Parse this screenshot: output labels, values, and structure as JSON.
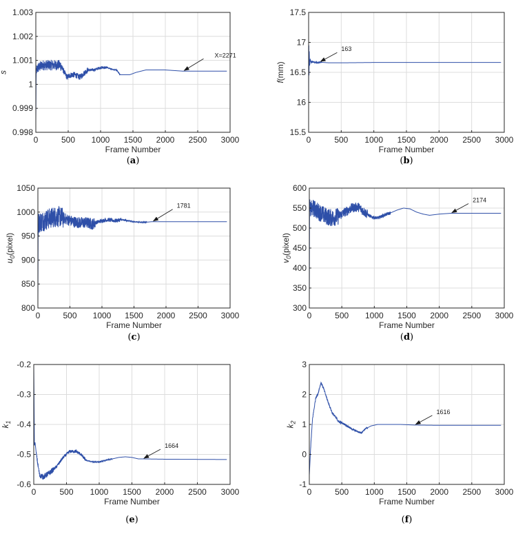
{
  "chart_data": [
    {
      "panel": "a",
      "type": "line",
      "ylabel": "s",
      "xlabel": "Frame Number",
      "xlim": [
        0,
        3000
      ],
      "ylim": [
        0.998,
        1.003
      ],
      "xticks": [
        0,
        500,
        1000,
        1500,
        2000,
        2500,
        3000
      ],
      "yticks": [
        0.998,
        0.999,
        1,
        1.001,
        1.002,
        1.003
      ],
      "ytick_labels": [
        "0.998",
        "0.999",
        "1",
        "1.001",
        "1.002",
        "1.003"
      ],
      "series_points": [
        [
          0,
          0.9984
        ],
        [
          4,
          1.0001
        ],
        [
          10,
          1.0006
        ],
        [
          40,
          1.0007
        ],
        [
          100,
          1.0008
        ],
        [
          200,
          1.0008
        ],
        [
          300,
          1.0008
        ],
        [
          380,
          1.0008
        ],
        [
          420,
          1.0006
        ],
        [
          480,
          1.0003
        ],
        [
          550,
          1.0004
        ],
        [
          600,
          1.0004
        ],
        [
          680,
          1.0003
        ],
        [
          760,
          1.0005
        ],
        [
          800,
          1.0006
        ],
        [
          900,
          1.0006
        ],
        [
          1000,
          1.0007
        ],
        [
          1100,
          1.0007
        ],
        [
          1200,
          1.0006
        ],
        [
          1250,
          1.0006
        ],
        [
          1300,
          1.0004
        ],
        [
          1350,
          1.0004
        ],
        [
          1450,
          1.0004
        ],
        [
          1550,
          1.0005
        ],
        [
          1700,
          1.0006
        ],
        [
          1850,
          1.0006
        ],
        [
          2000,
          1.0006
        ],
        [
          2271,
          1.00055
        ],
        [
          2600,
          1.00055
        ],
        [
          2950,
          1.00055
        ]
      ],
      "noise": [
        [
          0,
          400,
          0.00022
        ],
        [
          400,
          800,
          0.00012
        ],
        [
          800,
          1100,
          6e-05
        ],
        [
          1100,
          1300,
          2e-05
        ]
      ],
      "final": 1.00055,
      "annotation": {
        "text": "X=2271",
        "x": 2271,
        "y": 1.00055
      }
    },
    {
      "panel": "b",
      "type": "line",
      "ylabel": "f(mm)",
      "xlabel": "Frame  Number",
      "xlim": [
        0,
        3000
      ],
      "ylim": [
        15.5,
        17.5
      ],
      "xticks": [
        0,
        500,
        1000,
        1500,
        2000,
        2500,
        3000
      ],
      "yticks": [
        15.5,
        16,
        16.5,
        17,
        17.5
      ],
      "ytick_labels": [
        "15.5",
        "16",
        "16.5",
        "17",
        "17.5"
      ],
      "series_points": [
        [
          0,
          15.9
        ],
        [
          3,
          17.2
        ],
        [
          6,
          16.45
        ],
        [
          10,
          16.85
        ],
        [
          15,
          16.6
        ],
        [
          25,
          16.72
        ],
        [
          40,
          16.66
        ],
        [
          60,
          16.68
        ],
        [
          100,
          16.66
        ],
        [
          163,
          16.67
        ],
        [
          300,
          16.66
        ],
        [
          600,
          16.66
        ],
        [
          1000,
          16.665
        ],
        [
          2000,
          16.665
        ],
        [
          2950,
          16.665
        ]
      ],
      "noise": [
        [
          25,
          200,
          0.015
        ]
      ],
      "final": 16.665,
      "annotation": {
        "text": "163",
        "x": 163,
        "y": 16.67
      }
    },
    {
      "panel": "c",
      "type": "line",
      "ylabel": "u0(pixel)",
      "ylabel_main": "u",
      "ylabel_sub": "0",
      "ylabel_rest": "(pixel)",
      "xlabel": "Frame  Number",
      "xlim": [
        0,
        3000
      ],
      "ylim": [
        800,
        1050
      ],
      "xticks": [
        0,
        500,
        1000,
        1500,
        2000,
        2500,
        3000
      ],
      "yticks": [
        800,
        850,
        900,
        950,
        1000,
        1050
      ],
      "ytick_labels": [
        "800",
        "850",
        "900",
        "950",
        "1000",
        "1050"
      ],
      "series_points": [
        [
          0,
          810
        ],
        [
          4,
          960
        ],
        [
          10,
          978
        ],
        [
          50,
          980
        ],
        [
          150,
          985
        ],
        [
          250,
          990
        ],
        [
          350,
          990
        ],
        [
          450,
          985
        ],
        [
          550,
          980
        ],
        [
          650,
          978
        ],
        [
          750,
          978
        ],
        [
          850,
          975
        ],
        [
          900,
          978
        ],
        [
          1000,
          982
        ],
        [
          1100,
          984
        ],
        [
          1200,
          982
        ],
        [
          1300,
          984
        ],
        [
          1400,
          982
        ],
        [
          1500,
          980
        ],
        [
          1600,
          979
        ],
        [
          1700,
          979
        ],
        [
          1781,
          980
        ],
        [
          2200,
          980
        ],
        [
          2950,
          980
        ]
      ],
      "noise": [
        [
          4,
          400,
          22
        ],
        [
          400,
          900,
          12
        ],
        [
          900,
          1300,
          4
        ],
        [
          1300,
          1700,
          1.5
        ]
      ],
      "final": 980,
      "annotation": {
        "text": "1781",
        "x": 1781,
        "y": 980
      }
    },
    {
      "panel": "d",
      "type": "line",
      "ylabel": "v0(pixel)",
      "ylabel_main": "v",
      "ylabel_sub": "0",
      "ylabel_rest": "(pixel)",
      "xlabel": "Frame  Number",
      "xlim": [
        0,
        3000
      ],
      "ylim": [
        300,
        600
      ],
      "xticks": [
        0,
        500,
        1000,
        1500,
        2000,
        2500,
        3000
      ],
      "yticks": [
        300,
        350,
        400,
        450,
        500,
        550,
        600
      ],
      "ytick_labels": [
        "300",
        "350",
        "400",
        "450",
        "500",
        "550",
        "600"
      ],
      "series_points": [
        [
          0,
          300
        ],
        [
          4,
          560
        ],
        [
          10,
          545
        ],
        [
          60,
          550
        ],
        [
          150,
          540
        ],
        [
          250,
          530
        ],
        [
          350,
          525
        ],
        [
          450,
          530
        ],
        [
          550,
          540
        ],
        [
          650,
          550
        ],
        [
          750,
          553
        ],
        [
          850,
          540
        ],
        [
          950,
          528
        ],
        [
          1050,
          525
        ],
        [
          1150,
          532
        ],
        [
          1250,
          538
        ],
        [
          1350,
          545
        ],
        [
          1450,
          550
        ],
        [
          1550,
          548
        ],
        [
          1650,
          540
        ],
        [
          1750,
          535
        ],
        [
          1850,
          532
        ],
        [
          2000,
          535
        ],
        [
          2174,
          537
        ],
        [
          2500,
          537
        ],
        [
          2950,
          537
        ]
      ],
      "noise": [
        [
          4,
          450,
          22
        ],
        [
          450,
          900,
          12
        ],
        [
          900,
          1250,
          4
        ]
      ],
      "final": 537,
      "annotation": {
        "text": "2174",
        "x": 2174,
        "y": 537
      }
    },
    {
      "panel": "e",
      "type": "line",
      "ylabel": "k1",
      "ylabel_main": "k",
      "ylabel_sub": "1",
      "ylabel_rest": "",
      "xlabel": "Frame  Number",
      "xlim": [
        0,
        3000
      ],
      "ylim": [
        -0.6,
        -0.2
      ],
      "xticks": [
        0,
        500,
        1000,
        1500,
        2000,
        2500,
        3000
      ],
      "yticks": [
        -0.6,
        -0.5,
        -0.4,
        -0.3,
        -0.2
      ],
      "ytick_labels": [
        "-0.6",
        "-0.5",
        "-0.4",
        "-0.3",
        "-0.2"
      ],
      "series_points": [
        [
          0,
          -0.2
        ],
        [
          4,
          -0.3
        ],
        [
          10,
          -0.47
        ],
        [
          20,
          -0.46
        ],
        [
          40,
          -0.5
        ],
        [
          60,
          -0.53
        ],
        [
          90,
          -0.57
        ],
        [
          150,
          -0.575
        ],
        [
          250,
          -0.56
        ],
        [
          350,
          -0.54
        ],
        [
          450,
          -0.51
        ],
        [
          550,
          -0.49
        ],
        [
          650,
          -0.49
        ],
        [
          720,
          -0.5
        ],
        [
          800,
          -0.52
        ],
        [
          900,
          -0.525
        ],
        [
          1000,
          -0.525
        ],
        [
          1100,
          -0.52
        ],
        [
          1200,
          -0.515
        ],
        [
          1300,
          -0.51
        ],
        [
          1400,
          -0.508
        ],
        [
          1500,
          -0.51
        ],
        [
          1600,
          -0.515
        ],
        [
          1664,
          -0.515
        ],
        [
          2000,
          -0.516
        ],
        [
          2950,
          -0.517
        ]
      ],
      "noise": [
        [
          40,
          300,
          0.009
        ],
        [
          300,
          800,
          0.005
        ],
        [
          800,
          1200,
          0.0015
        ]
      ],
      "final": -0.517,
      "annotation": {
        "text": "1664",
        "x": 1664,
        "y": -0.515
      }
    },
    {
      "panel": "f",
      "type": "line",
      "ylabel": "k2",
      "ylabel_main": "k",
      "ylabel_sub": "2",
      "ylabel_rest": "",
      "xlabel": "Frame  Number",
      "xlim": [
        0,
        3000
      ],
      "ylim": [
        -1,
        3
      ],
      "xticks": [
        0,
        500,
        1000,
        1500,
        2000,
        2500,
        3000
      ],
      "yticks": [
        -1,
        0,
        1,
        2,
        3
      ],
      "ytick_labels": [
        "-1",
        "0",
        "1",
        "2",
        "3"
      ],
      "series_points": [
        [
          0,
          -0.7
        ],
        [
          20,
          0.2
        ],
        [
          50,
          1.2
        ],
        [
          100,
          1.9
        ],
        [
          130,
          2.0
        ],
        [
          180,
          2.4
        ],
        [
          220,
          2.2
        ],
        [
          280,
          1.8
        ],
        [
          350,
          1.4
        ],
        [
          450,
          1.1
        ],
        [
          550,
          1.0
        ],
        [
          650,
          0.85
        ],
        [
          700,
          0.8
        ],
        [
          760,
          0.75
        ],
        [
          800,
          0.72
        ],
        [
          860,
          0.85
        ],
        [
          950,
          0.95
        ],
        [
          1050,
          1.0
        ],
        [
          1200,
          1.0
        ],
        [
          1400,
          1.0
        ],
        [
          1616,
          0.98
        ],
        [
          2000,
          0.97
        ],
        [
          2950,
          0.97
        ]
      ],
      "noise": [
        [
          20,
          500,
          0.04
        ],
        [
          500,
          900,
          0.03
        ]
      ],
      "final": 0.97,
      "annotation": {
        "text": "1616",
        "x": 1616,
        "y": 0.98
      }
    }
  ],
  "captions": [
    {
      "open": "(",
      "letter": "a",
      "close": ")"
    },
    {
      "open": "(",
      "letter": "b",
      "close": ")"
    },
    {
      "open": "(",
      "letter": "c",
      "close": ")"
    },
    {
      "open": "(",
      "letter": "d",
      "close": ")"
    },
    {
      "open": "(",
      "letter": "e",
      "close": ")"
    },
    {
      "open": "(",
      "letter": "f",
      "close": ")"
    }
  ],
  "colors": {
    "series": "#2e4fa8",
    "grid": "#dcdcdc",
    "axis": "#262626"
  }
}
